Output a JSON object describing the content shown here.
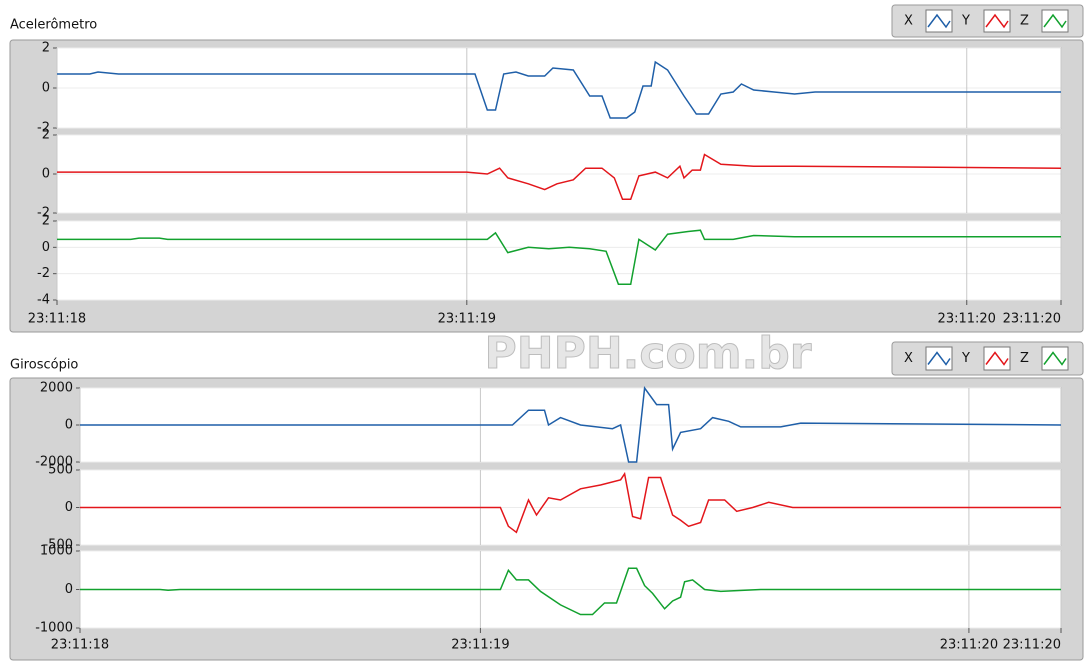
{
  "watermark": "PHPH.com.br",
  "chart_data": [
    {
      "type": "line",
      "title": "Acelerômetro",
      "xlim": [
        0,
        2.45
      ],
      "xticks": [
        {
          "value": 0,
          "label": "23:11:18"
        },
        {
          "value": 1,
          "label": "23:11:19"
        },
        {
          "value": 2.22,
          "label": "23:11:20"
        },
        {
          "value": 2.45,
          "label": "23:11:20"
        }
      ],
      "plots": [
        {
          "ylim": [
            -2,
            2
          ],
          "yticks": [
            -2,
            0,
            2
          ],
          "series": [
            {
              "name": "X",
              "color": "#1f5fa8",
              "x": [
                0,
                0.08,
                0.1,
                0.15,
                1.02,
                1.05,
                1.07,
                1.09,
                1.12,
                1.15,
                1.19,
                1.21,
                1.26,
                1.3,
                1.33,
                1.35,
                1.39,
                1.41,
                1.43,
                1.45,
                1.46,
                1.49,
                1.53,
                1.56,
                1.59,
                1.62,
                1.65,
                1.67,
                1.7,
                1.75,
                1.8,
                1.85,
                2.45
              ],
              "values": [
                0.7,
                0.7,
                0.8,
                0.7,
                0.7,
                -1.1,
                -1.1,
                0.7,
                0.8,
                0.6,
                0.6,
                1.0,
                0.9,
                -0.4,
                -0.4,
                -1.5,
                -1.5,
                -1.2,
                0.1,
                0.1,
                1.3,
                0.9,
                -0.4,
                -1.3,
                -1.3,
                -0.3,
                -0.2,
                0.2,
                -0.1,
                -0.2,
                -0.3,
                -0.2,
                -0.2
              ]
            }
          ]
        },
        {
          "ylim": [
            -2,
            2
          ],
          "yticks": [
            -2,
            0,
            2
          ],
          "series": [
            {
              "name": "Y",
              "color": "#e3161b",
              "x": [
                0,
                1.0,
                1.05,
                1.08,
                1.1,
                1.15,
                1.19,
                1.22,
                1.26,
                1.29,
                1.33,
                1.36,
                1.38,
                1.4,
                1.42,
                1.46,
                1.49,
                1.52,
                1.53,
                1.55,
                1.57,
                1.58,
                1.62,
                1.7,
                1.8,
                2.45
              ],
              "values": [
                0.1,
                0.1,
                0.0,
                0.3,
                -0.2,
                -0.5,
                -0.8,
                -0.5,
                -0.3,
                0.3,
                0.3,
                -0.2,
                -1.3,
                -1.3,
                -0.1,
                0.1,
                -0.2,
                0.4,
                -0.2,
                0.2,
                0.2,
                1.0,
                0.5,
                0.4,
                0.4,
                0.3
              ]
            }
          ]
        },
        {
          "ylim": [
            -4,
            2
          ],
          "yticks": [
            -4,
            -2,
            0,
            2
          ],
          "series": [
            {
              "name": "Z",
              "color": "#12a12e",
              "x": [
                0,
                0.18,
                0.2,
                0.25,
                0.27,
                1.05,
                1.07,
                1.1,
                1.15,
                1.2,
                1.25,
                1.3,
                1.34,
                1.37,
                1.4,
                1.42,
                1.46,
                1.49,
                1.54,
                1.57,
                1.58,
                1.65,
                1.7,
                1.8,
                1.9,
                2.45
              ],
              "values": [
                0.6,
                0.6,
                0.7,
                0.7,
                0.6,
                0.6,
                1.1,
                -0.4,
                0.0,
                -0.1,
                0.0,
                -0.1,
                -0.3,
                -2.8,
                -2.8,
                0.6,
                -0.2,
                1.0,
                1.2,
                1.3,
                0.6,
                0.6,
                0.9,
                0.8,
                0.8,
                0.8
              ]
            }
          ]
        }
      ]
    },
    {
      "type": "line",
      "title": "Giroscópio",
      "xlim": [
        0,
        2.45
      ],
      "xticks": [
        {
          "value": 0,
          "label": "23:11:18"
        },
        {
          "value": 1,
          "label": "23:11:19"
        },
        {
          "value": 2.22,
          "label": "23:11:20"
        },
        {
          "value": 2.45,
          "label": "23:11:20"
        }
      ],
      "plots": [
        {
          "ylim": [
            -2000,
            2000
          ],
          "yticks": [
            -2000,
            0,
            2000
          ],
          "series": [
            {
              "name": "X",
              "color": "#1f5fa8",
              "x": [
                0,
                1.05,
                1.08,
                1.12,
                1.16,
                1.17,
                1.2,
                1.25,
                1.33,
                1.35,
                1.37,
                1.39,
                1.41,
                1.44,
                1.47,
                1.48,
                1.5,
                1.55,
                1.58,
                1.62,
                1.65,
                1.75,
                1.8,
                2.45
              ],
              "values": [
                0,
                0,
                0,
                800,
                800,
                0,
                400,
                0,
                -200,
                0,
                -2000,
                -2000,
                2000,
                1100,
                1100,
                -1300,
                -400,
                -200,
                400,
                200,
                -100,
                -100,
                100,
                0
              ]
            }
          ]
        },
        {
          "ylim": [
            -500,
            500
          ],
          "yticks": [
            -500,
            0,
            500
          ],
          "series": [
            {
              "name": "Y",
              "color": "#e3161b",
              "x": [
                0,
                1.05,
                1.07,
                1.09,
                1.12,
                1.14,
                1.17,
                1.2,
                1.25,
                1.3,
                1.35,
                1.36,
                1.38,
                1.4,
                1.42,
                1.45,
                1.48,
                1.5,
                1.52,
                1.55,
                1.57,
                1.61,
                1.64,
                1.68,
                1.72,
                1.78,
                2.45
              ],
              "values": [
                0,
                0,
                -250,
                -330,
                100,
                -100,
                130,
                100,
                250,
                300,
                370,
                450,
                -120,
                -150,
                400,
                400,
                -100,
                -170,
                -250,
                -200,
                100,
                100,
                -50,
                0,
                70,
                0,
                0
              ]
            }
          ]
        },
        {
          "ylim": [
            -1000,
            1000
          ],
          "yticks": [
            -1000,
            0,
            1000
          ],
          "series": [
            {
              "name": "Z",
              "color": "#12a12e",
              "x": [
                0,
                0.2,
                0.22,
                0.25,
                1.05,
                1.07,
                1.09,
                1.12,
                1.15,
                1.2,
                1.25,
                1.28,
                1.31,
                1.34,
                1.35,
                1.37,
                1.39,
                1.41,
                1.43,
                1.46,
                1.48,
                1.5,
                1.51,
                1.53,
                1.56,
                1.6,
                1.7,
                2.45
              ],
              "values": [
                0,
                0,
                -20,
                0,
                0,
                500,
                250,
                250,
                -50,
                -400,
                -650,
                -650,
                -350,
                -350,
                -50,
                550,
                550,
                100,
                -100,
                -500,
                -300,
                -200,
                200,
                250,
                0,
                -50,
                0,
                0
              ]
            }
          ]
        }
      ]
    }
  ]
}
